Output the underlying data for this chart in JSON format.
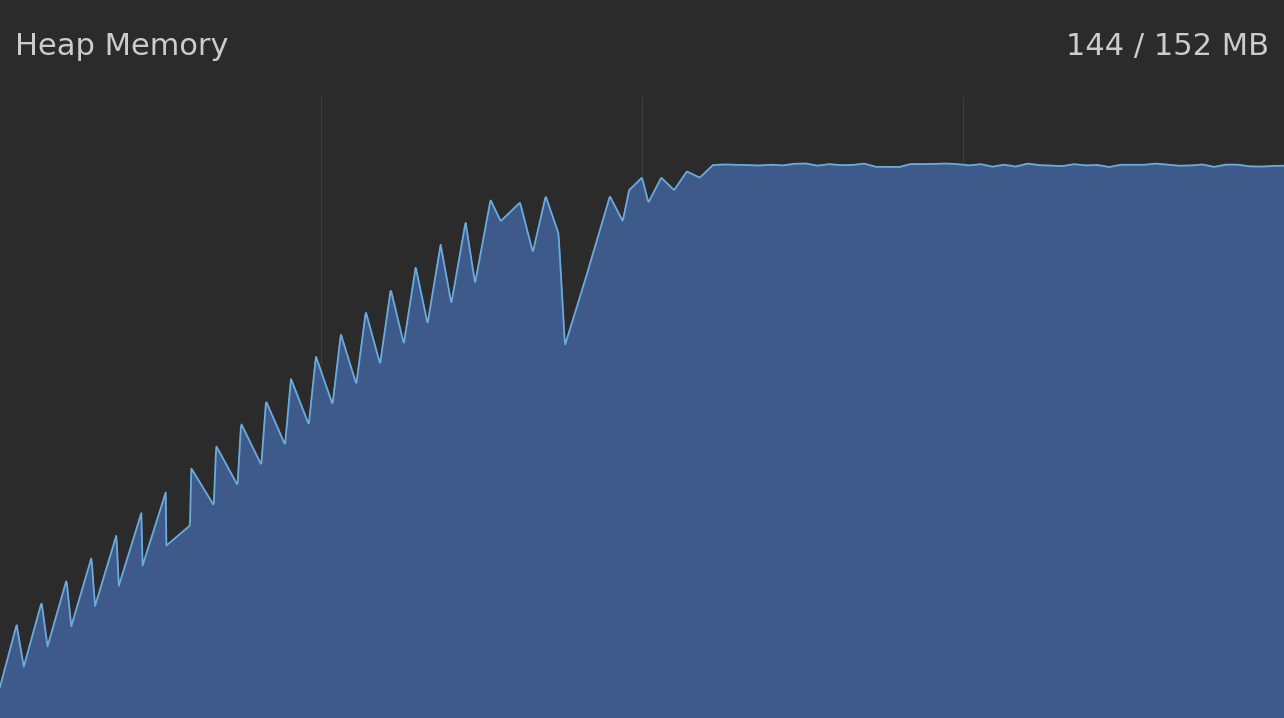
{
  "title_left": "Heap Memory",
  "title_right": "144 / 152 MB",
  "bg_color": "#2b2b2b",
  "plot_bg_color": "#2b2b2b",
  "fill_color": "#3d5a8a",
  "line_color": "#6aaadd",
  "title_color": "#cccccc",
  "fig_width": 12.84,
  "fig_height": 7.18
}
